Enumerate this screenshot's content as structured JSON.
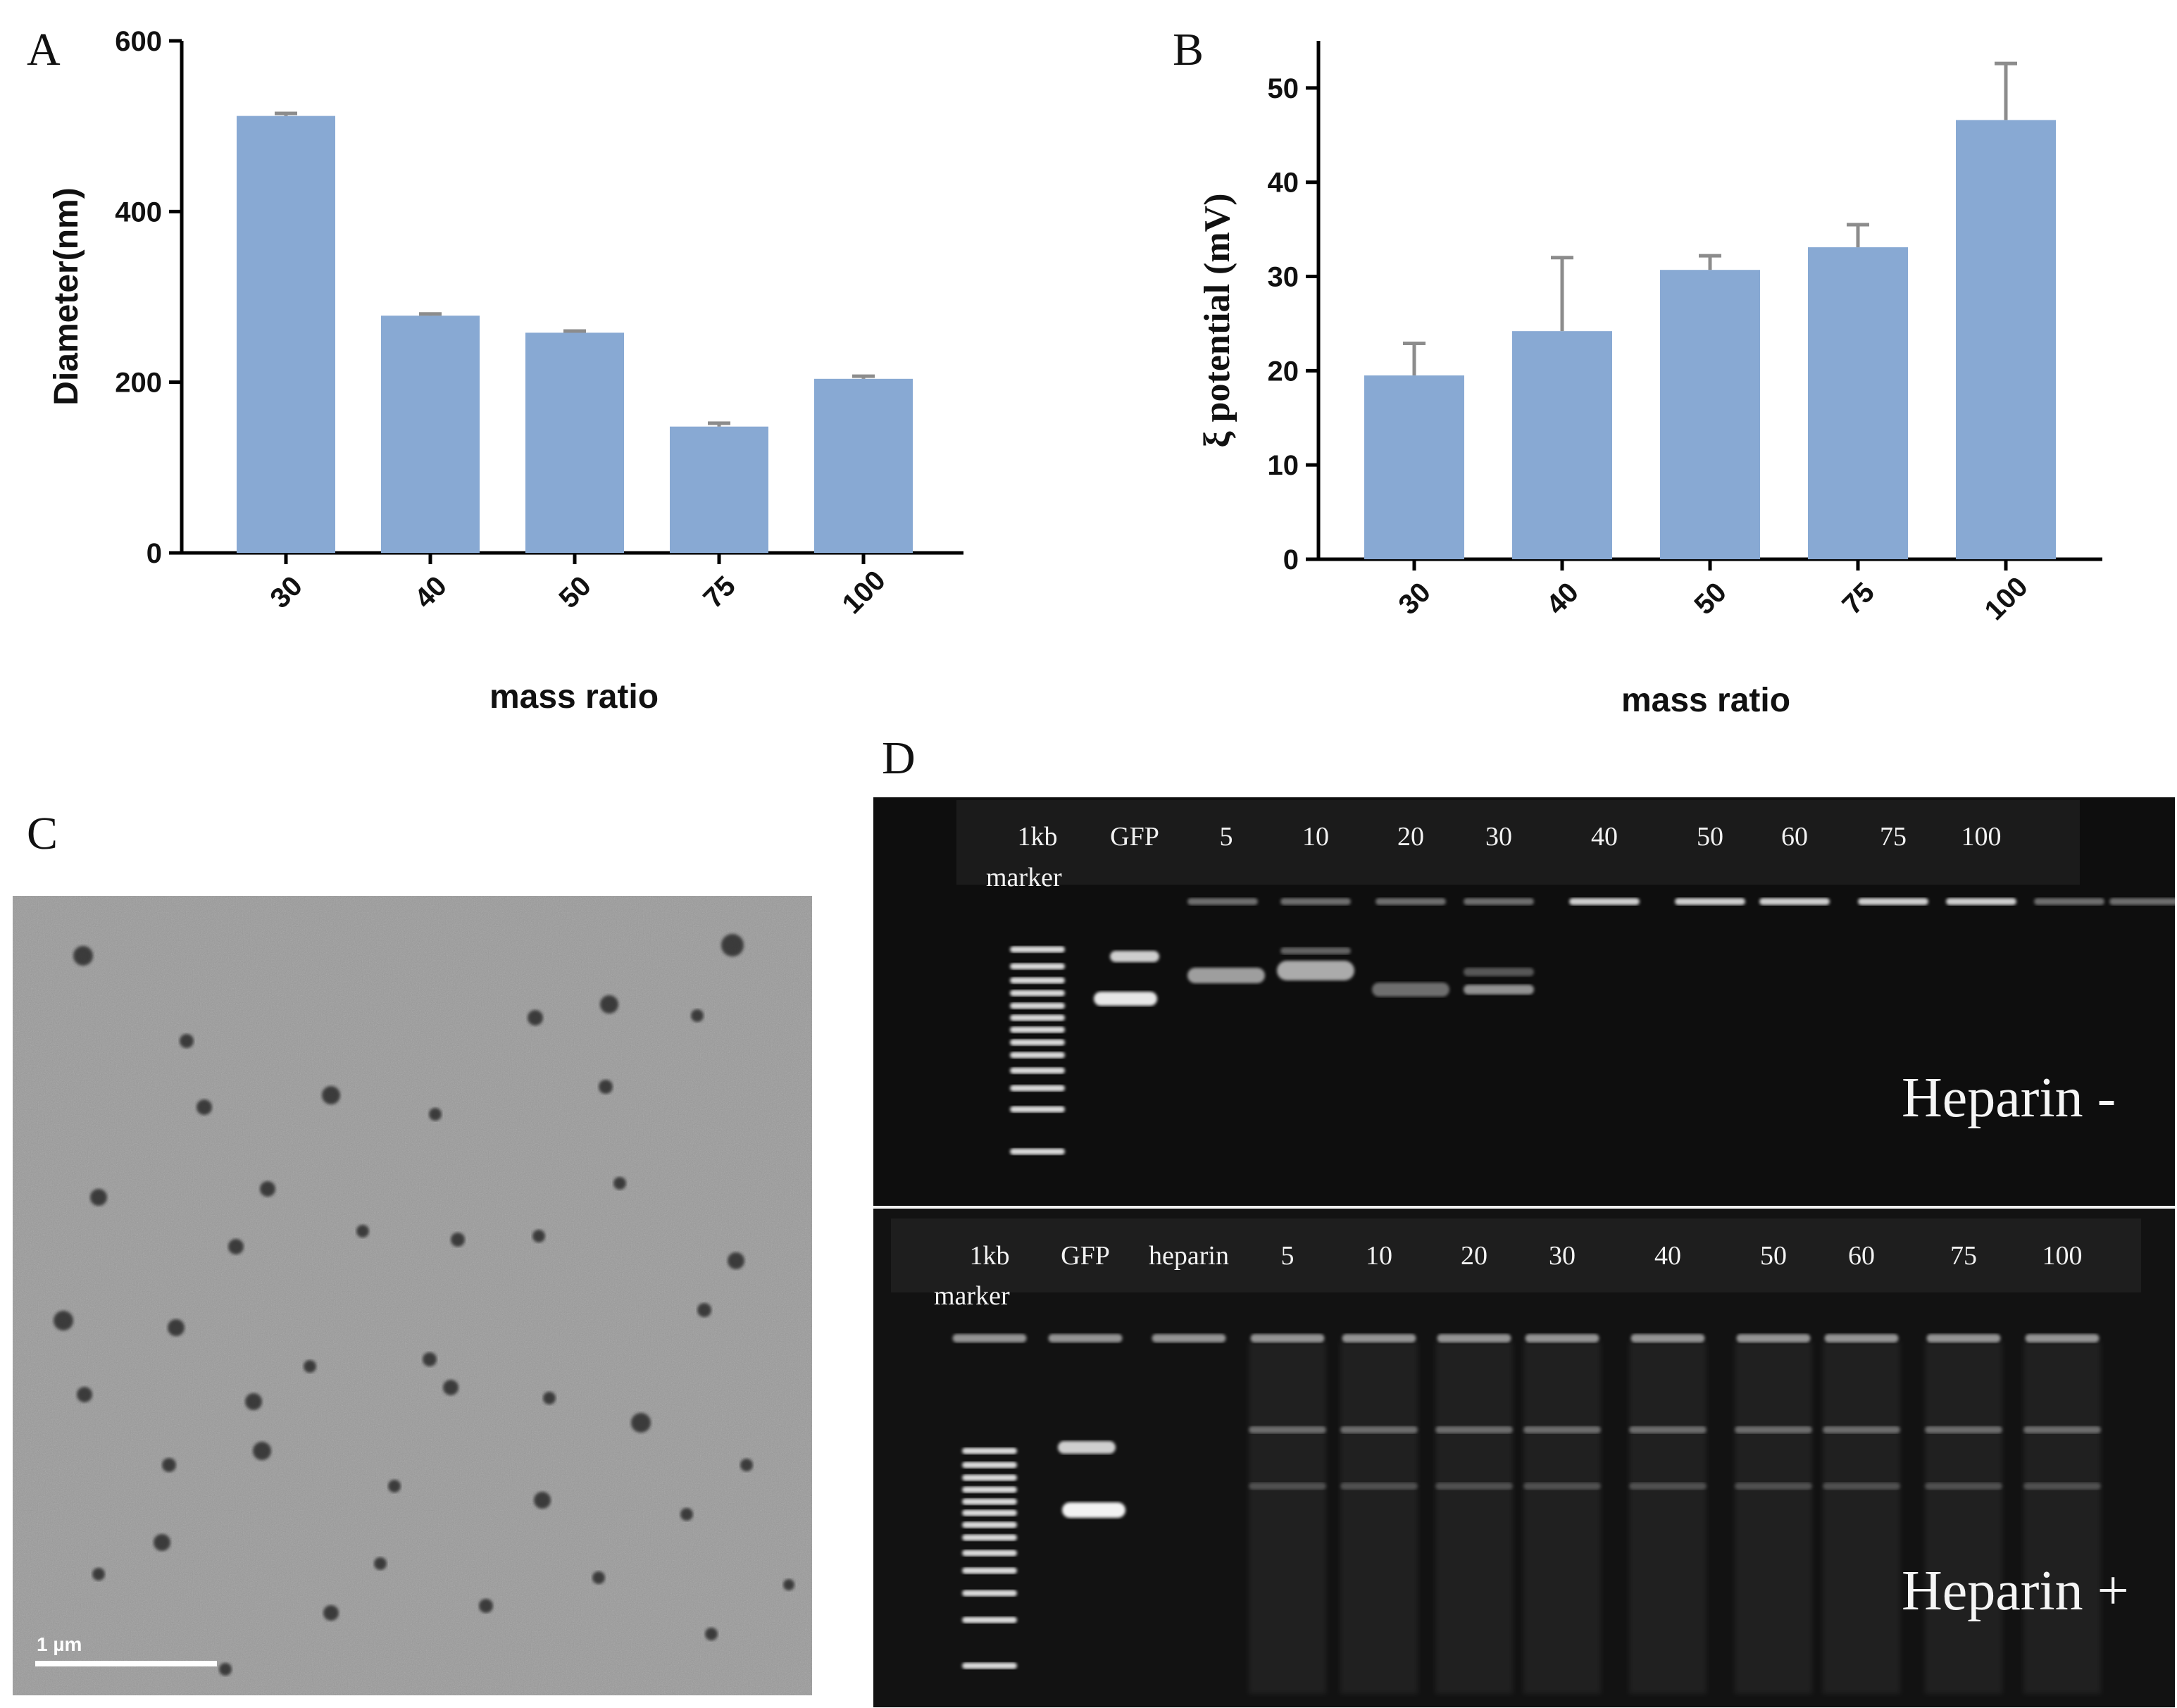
{
  "colors": {
    "bar": "#88a9d3",
    "error_bar": "#8c8c8c",
    "axis": "#000000",
    "gel_background": "#0e0e0e",
    "tem_background": "#9a9a9a"
  },
  "panels": {
    "a": {
      "letter": "A"
    },
    "b": {
      "letter": "B"
    },
    "c": {
      "letter": "C",
      "scale_bar": "1 µm"
    },
    "d": {
      "letter": "D",
      "top_lanes": [
        "1kb",
        "GFP",
        "5",
        "10",
        "20",
        "30",
        "40",
        "50",
        "60",
        "75",
        "100"
      ],
      "top_marker_sub": "marker",
      "top_condition": "Heparin -",
      "bottom_lanes": [
        "1kb",
        "GFP",
        "heparin",
        "5",
        "10",
        "20",
        "30",
        "40",
        "50",
        "60",
        "75",
        "100"
      ],
      "bottom_marker_sub": "marker",
      "bottom_condition": "Heparin +"
    }
  },
  "chart_data": [
    {
      "type": "bar",
      "panel": "A",
      "categories": [
        "30",
        "40",
        "50",
        "75",
        "100"
      ],
      "values": [
        512,
        278,
        258,
        148,
        204
      ],
      "errors": [
        3,
        2,
        2,
        4,
        3
      ],
      "xlabel": "mass ratio",
      "ylabel": "Diameter(nm)",
      "ylim": [
        0,
        600
      ],
      "yticks": [
        "0",
        "200",
        "400",
        "600"
      ]
    },
    {
      "type": "bar",
      "panel": "B",
      "categories": [
        "30",
        "40",
        "50",
        "75",
        "100"
      ],
      "values": [
        19.5,
        24.2,
        30.7,
        33.1,
        46.6
      ],
      "errors": [
        3.4,
        7.8,
        1.5,
        2.4,
        6.0
      ],
      "xlabel": "mass ratio",
      "ylabel": "ξ potential (mV)",
      "ylim": [
        0,
        55
      ],
      "yticks": [
        "0",
        "10",
        "20",
        "30",
        "40",
        "50"
      ]
    }
  ]
}
